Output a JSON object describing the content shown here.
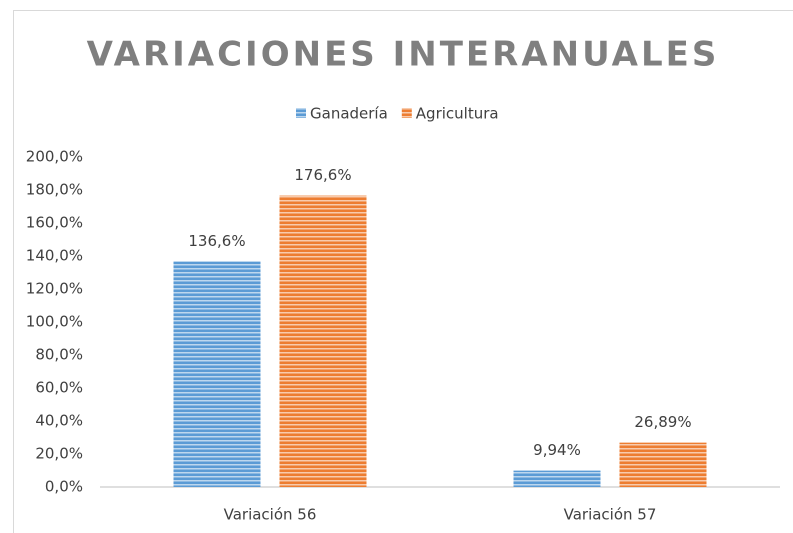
{
  "chart_data": {
    "type": "bar",
    "title": "VARIACIONES INTERANUALES",
    "categories": [
      "Variación 56",
      "Variación 57"
    ],
    "series": [
      {
        "name": "Ganadería",
        "color": "#5b9bd5",
        "values": [
          136.6,
          9.94
        ],
        "value_labels": [
          "136,6%",
          "9,94%"
        ]
      },
      {
        "name": "Agricultura",
        "color": "#ed7d31",
        "values": [
          176.6,
          26.89
        ],
        "value_labels": [
          "176,6%",
          "26,89%"
        ]
      }
    ],
    "ylim": [
      0,
      200
    ],
    "yticks": [
      {
        "value": 0,
        "label": "0,0%"
      },
      {
        "value": 20,
        "label": "20,0%"
      },
      {
        "value": 40,
        "label": "40,0%"
      },
      {
        "value": 60,
        "label": "60,0%"
      },
      {
        "value": 80,
        "label": "80,0%"
      },
      {
        "value": 100,
        "label": "100,0%"
      },
      {
        "value": 120,
        "label": "120,0%"
      },
      {
        "value": 140,
        "label": "140,0%"
      },
      {
        "value": 160,
        "label": "160,0%"
      },
      {
        "value": 180,
        "label": "180,0%"
      },
      {
        "value": 200,
        "label": "200,0%"
      }
    ],
    "grid": false,
    "legend": "top"
  }
}
